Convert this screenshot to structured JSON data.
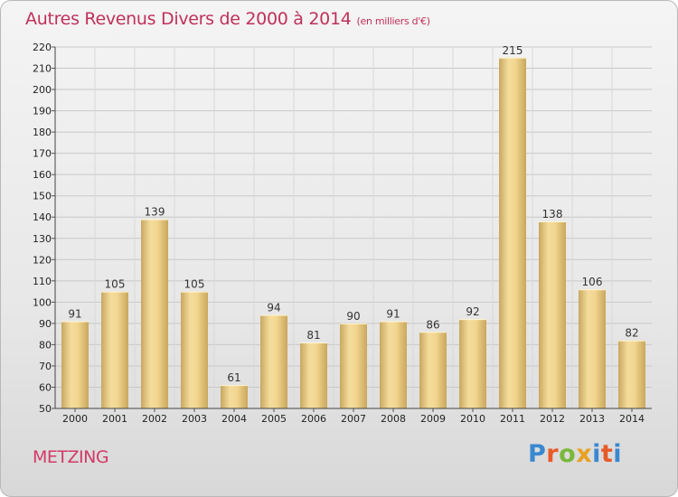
{
  "header": {
    "title": "Autres Revenus Divers de 2000 à 2014",
    "unit": "(en milliers d'€)"
  },
  "footer": {
    "city": "METZING",
    "logo": [
      "P",
      "r",
      "o",
      "x",
      "i",
      "t",
      "i"
    ]
  },
  "colors": {
    "title": "#c0305a",
    "bar_light": "#f5dc9c",
    "bar_dark": "#c8a860",
    "grid": "#c8c8c8"
  },
  "chart_data": {
    "type": "bar",
    "title": "Autres Revenus Divers de 2000 à 2014",
    "subtitle": "(en milliers d'€)",
    "xlabel": "",
    "ylabel": "",
    "categories": [
      "2000",
      "2001",
      "2002",
      "2003",
      "2004",
      "2005",
      "2006",
      "2007",
      "2008",
      "2009",
      "2010",
      "2011",
      "2012",
      "2013",
      "2014"
    ],
    "values": [
      91,
      105,
      139,
      105,
      61,
      94,
      81,
      90,
      91,
      86,
      92,
      215,
      138,
      106,
      82
    ],
    "ylim": [
      50,
      220
    ],
    "ytick_step": 10,
    "grid": true,
    "legend": "none"
  }
}
